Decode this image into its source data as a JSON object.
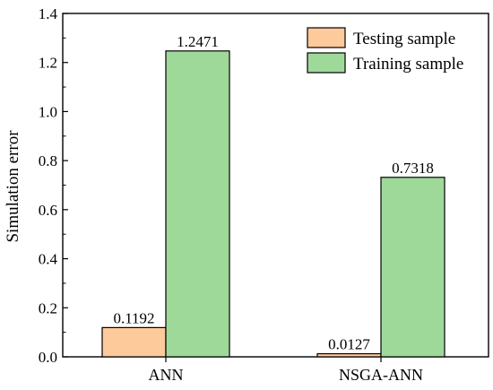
{
  "chart_data": {
    "type": "bar",
    "title": "",
    "xlabel": "",
    "ylabel": "Simulation error",
    "ylim": [
      0,
      1.4
    ],
    "yticks": [
      "0.0",
      "0.2",
      "0.4",
      "0.6",
      "0.8",
      "1.0",
      "1.2",
      "1.4"
    ],
    "categories": [
      "ANN",
      "NSGA-ANN"
    ],
    "series": [
      {
        "name": "Testing sample",
        "values": [
          0.1192,
          0.0127
        ],
        "labels": [
          "0.1192",
          "0.0127"
        ],
        "color": "#fdca9b"
      },
      {
        "name": "Training sample",
        "values": [
          1.2471,
          0.7318
        ],
        "labels": [
          "1.2471",
          "0.7318"
        ],
        "color": "#9fd99a"
      }
    ],
    "legend_position": "top-right",
    "grid": false
  }
}
